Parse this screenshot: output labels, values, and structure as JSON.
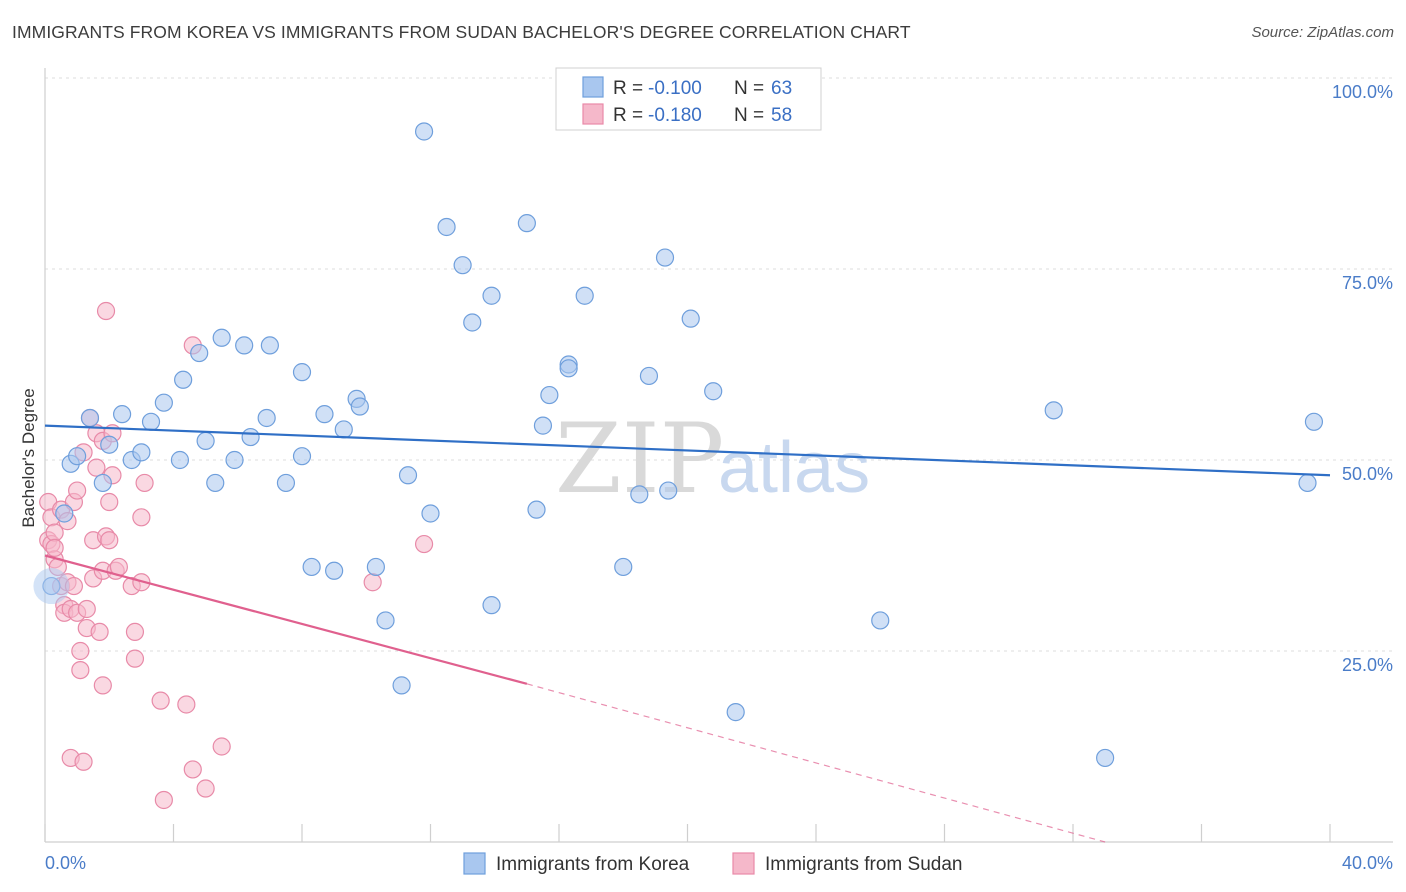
{
  "title": "IMMIGRANTS FROM KOREA VS IMMIGRANTS FROM SUDAN BACHELOR'S DEGREE CORRELATION CHART",
  "source": "Source: ZipAtlas.com",
  "watermark": {
    "zip": "ZIP",
    "atlas": "atlas"
  },
  "colors": {
    "korea_fill": "#a9c7ef",
    "korea_stroke": "#6f9fdc",
    "korea_line": "#2f6fc6",
    "sudan_fill": "#f5b8ca",
    "sudan_stroke": "#e88aa8",
    "sudan_line": "#e0608e",
    "axis_text": "#4a7cc8"
  },
  "legend": {
    "rows": [
      {
        "r_label": "R = ",
        "r_value": "-0.100",
        "n_label": "N = ",
        "n_value": "63"
      },
      {
        "r_label": "R = ",
        "r_value": "-0.180",
        "n_label": "N = ",
        "n_value": "58"
      }
    ]
  },
  "chart_data": {
    "type": "scatter",
    "title": "IMMIGRANTS FROM KOREA VS IMMIGRANTS FROM SUDAN BACHELOR'S DEGREE CORRELATION CHART",
    "xlabel": "",
    "ylabel": "Bachelor's Degree",
    "xlim": [
      0,
      40
    ],
    "ylim": [
      0,
      100
    ],
    "x_tick_labels": [
      "0.0%",
      "40.0%"
    ],
    "y_tick_labels": [
      "100.0%",
      "75.0%",
      "50.0%",
      "25.0%"
    ],
    "y_ticks": [
      100,
      75,
      50,
      25
    ],
    "grid": true,
    "legend_position": "top-center",
    "series": [
      {
        "name": "Immigrants from Korea",
        "trend": {
          "x": [
            0,
            40
          ],
          "y": [
            54.5,
            48.0
          ],
          "dashed_after": null
        },
        "points": [
          [
            0.2,
            33.5
          ],
          [
            0.6,
            43.0
          ],
          [
            0.8,
            49.5
          ],
          [
            1.0,
            50.5
          ],
          [
            1.4,
            55.5
          ],
          [
            1.8,
            47.0
          ],
          [
            2.0,
            52.0
          ],
          [
            2.4,
            56.0
          ],
          [
            2.7,
            50.0
          ],
          [
            3.0,
            51.0
          ],
          [
            3.3,
            55.0
          ],
          [
            3.7,
            57.5
          ],
          [
            4.2,
            50.0
          ],
          [
            4.3,
            60.5
          ],
          [
            4.8,
            64.0
          ],
          [
            5.0,
            52.5
          ],
          [
            5.3,
            47.0
          ],
          [
            5.5,
            66.0
          ],
          [
            5.9,
            50.0
          ],
          [
            6.2,
            65.0
          ],
          [
            6.4,
            53.0
          ],
          [
            6.9,
            55.5
          ],
          [
            7.0,
            65.0
          ],
          [
            7.5,
            47.0
          ],
          [
            8.0,
            50.5
          ],
          [
            8.0,
            61.5
          ],
          [
            8.3,
            36.0
          ],
          [
            8.7,
            56.0
          ],
          [
            9.0,
            35.5
          ],
          [
            9.3,
            54.0
          ],
          [
            9.7,
            58.0
          ],
          [
            9.8,
            57.0
          ],
          [
            10.3,
            36.0
          ],
          [
            10.6,
            29.0
          ],
          [
            11.1,
            20.5
          ],
          [
            11.3,
            48.0
          ],
          [
            11.8,
            93.0
          ],
          [
            12.0,
            43.0
          ],
          [
            12.5,
            80.5
          ],
          [
            13.0,
            75.5
          ],
          [
            13.3,
            68.0
          ],
          [
            13.9,
            31.0
          ],
          [
            13.9,
            71.5
          ],
          [
            15.0,
            81.0
          ],
          [
            15.3,
            43.5
          ],
          [
            15.5,
            54.5
          ],
          [
            15.7,
            58.5
          ],
          [
            16.3,
            62.5
          ],
          [
            16.3,
            62.0
          ],
          [
            16.8,
            71.5
          ],
          [
            18.0,
            36.0
          ],
          [
            18.5,
            45.5
          ],
          [
            18.8,
            61.0
          ],
          [
            19.3,
            76.5
          ],
          [
            19.4,
            46.0
          ],
          [
            20.1,
            68.5
          ],
          [
            20.8,
            59.0
          ],
          [
            21.5,
            17.0
          ],
          [
            26.0,
            29.0
          ],
          [
            31.4,
            56.5
          ],
          [
            33.0,
            11.0
          ],
          [
            39.3,
            47.0
          ],
          [
            39.5,
            55.0
          ]
        ]
      },
      {
        "name": "Immigrants from Sudan",
        "trend": {
          "x": [
            0,
            15
          ],
          "y": [
            37.5,
            20.7
          ],
          "dashed_x": [
            15,
            33
          ],
          "dashed_y": [
            20.7,
            0
          ]
        },
        "points": [
          [
            0.1,
            44.5
          ],
          [
            0.1,
            39.5
          ],
          [
            0.2,
            39.0
          ],
          [
            0.2,
            42.5
          ],
          [
            0.3,
            37.0
          ],
          [
            0.3,
            40.5
          ],
          [
            0.5,
            33.5
          ],
          [
            0.5,
            43.5
          ],
          [
            0.6,
            31.0
          ],
          [
            0.6,
            30.0
          ],
          [
            0.7,
            42.0
          ],
          [
            0.7,
            34.0
          ],
          [
            0.8,
            11.0
          ],
          [
            0.8,
            30.5
          ],
          [
            0.9,
            33.5
          ],
          [
            0.9,
            44.5
          ],
          [
            1.0,
            30.0
          ],
          [
            1.0,
            46.0
          ],
          [
            1.1,
            25.0
          ],
          [
            1.1,
            22.5
          ],
          [
            1.2,
            51.0
          ],
          [
            1.2,
            10.5
          ],
          [
            1.3,
            28.0
          ],
          [
            1.3,
            30.5
          ],
          [
            1.4,
            55.5
          ],
          [
            1.5,
            39.5
          ],
          [
            1.5,
            34.5
          ],
          [
            1.6,
            49.0
          ],
          [
            1.6,
            53.5
          ],
          [
            1.7,
            27.5
          ],
          [
            1.8,
            35.5
          ],
          [
            1.8,
            52.5
          ],
          [
            1.8,
            20.5
          ],
          [
            1.9,
            69.5
          ],
          [
            1.9,
            40.0
          ],
          [
            2.0,
            44.5
          ],
          [
            2.0,
            39.5
          ],
          [
            2.1,
            48.0
          ],
          [
            2.1,
            53.5
          ],
          [
            2.2,
            35.5
          ],
          [
            2.3,
            36.0
          ],
          [
            2.7,
            33.5
          ],
          [
            2.8,
            27.5
          ],
          [
            2.8,
            24.0
          ],
          [
            3.0,
            34.0
          ],
          [
            3.0,
            42.5
          ],
          [
            3.1,
            47.0
          ],
          [
            3.6,
            18.5
          ],
          [
            3.7,
            5.5
          ],
          [
            4.4,
            18.0
          ],
          [
            4.6,
            9.5
          ],
          [
            4.6,
            65.0
          ],
          [
            5.0,
            7.0
          ],
          [
            5.5,
            12.5
          ],
          [
            10.2,
            34.0
          ],
          [
            11.8,
            39.0
          ],
          [
            0.4,
            36.0
          ],
          [
            0.3,
            38.5
          ]
        ]
      }
    ]
  },
  "bottom_legend": [
    {
      "label": "Immigrants from Korea"
    },
    {
      "label": "Immigrants from Sudan"
    }
  ]
}
